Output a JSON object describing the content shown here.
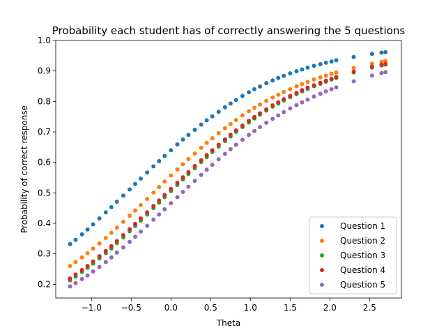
{
  "chart_data": {
    "type": "scatter",
    "title": "Probability each student has of correctly answering the 5 questions",
    "xlabel": "Theta",
    "ylabel": "Probability of correct response",
    "xlim": [
      -1.45,
      2.9
    ],
    "ylim": [
      0.155,
      1.0
    ],
    "xticks": [
      -1.0,
      -0.5,
      0.0,
      0.5,
      1.0,
      1.5,
      2.0,
      2.5
    ],
    "xtick_labels": [
      "−1.0",
      "−0.5",
      "0.0",
      "0.5",
      "1.0",
      "1.5",
      "2.0",
      "2.5"
    ],
    "yticks": [
      0.2,
      0.3,
      0.4,
      0.5,
      0.6,
      0.7,
      0.8,
      0.9,
      1.0
    ],
    "ytick_labels": [
      "0.2",
      "0.3",
      "0.4",
      "0.5",
      "0.6",
      "0.7",
      "0.8",
      "0.9",
      "1.0"
    ],
    "grid": false,
    "legend_position": "lower-right",
    "x": [
      -1.27,
      -1.2,
      -1.12,
      -1.05,
      -0.98,
      -0.9,
      -0.82,
      -0.75,
      -0.68,
      -0.6,
      -0.52,
      -0.45,
      -0.38,
      -0.3,
      -0.22,
      -0.15,
      -0.08,
      0.0,
      0.08,
      0.15,
      0.22,
      0.3,
      0.38,
      0.45,
      0.52,
      0.6,
      0.68,
      0.75,
      0.82,
      0.9,
      0.98,
      1.05,
      1.12,
      1.2,
      1.28,
      1.35,
      1.42,
      1.5,
      1.58,
      1.65,
      1.72,
      1.8,
      1.88,
      1.95,
      2.02,
      2.08,
      2.3,
      2.53,
      2.65,
      2.7
    ],
    "series": [
      {
        "name": "Question 1",
        "color": "#1f77b4",
        "values": [
          0.332,
          0.346,
          0.364,
          0.38,
          0.397,
          0.416,
          0.436,
          0.453,
          0.471,
          0.491,
          0.511,
          0.529,
          0.547,
          0.567,
          0.587,
          0.604,
          0.621,
          0.64,
          0.659,
          0.675,
          0.69,
          0.707,
          0.724,
          0.738,
          0.751,
          0.766,
          0.781,
          0.793,
          0.805,
          0.818,
          0.83,
          0.84,
          0.849,
          0.86,
          0.869,
          0.877,
          0.884,
          0.892,
          0.899,
          0.905,
          0.911,
          0.917,
          0.922,
          0.927,
          0.931,
          0.935,
          0.946,
          0.956,
          0.96,
          0.962
        ]
      },
      {
        "name": "Question 2",
        "color": "#ff7f0e",
        "values": [
          0.26,
          0.273,
          0.288,
          0.302,
          0.317,
          0.334,
          0.352,
          0.369,
          0.386,
          0.405,
          0.425,
          0.442,
          0.46,
          0.48,
          0.501,
          0.519,
          0.537,
          0.557,
          0.577,
          0.594,
          0.611,
          0.629,
          0.648,
          0.664,
          0.679,
          0.696,
          0.712,
          0.726,
          0.739,
          0.754,
          0.768,
          0.779,
          0.79,
          0.802,
          0.813,
          0.822,
          0.831,
          0.84,
          0.85,
          0.857,
          0.864,
          0.872,
          0.879,
          0.885,
          0.891,
          0.895,
          0.91,
          0.924,
          0.93,
          0.933
        ]
      },
      {
        "name": "Question 3",
        "color": "#2ca02c",
        "values": [
          0.213,
          0.225,
          0.24,
          0.254,
          0.268,
          0.285,
          0.302,
          0.318,
          0.335,
          0.354,
          0.374,
          0.391,
          0.409,
          0.429,
          0.45,
          0.468,
          0.486,
          0.506,
          0.526,
          0.544,
          0.562,
          0.581,
          0.601,
          0.617,
          0.634,
          0.652,
          0.67,
          0.685,
          0.7,
          0.716,
          0.731,
          0.744,
          0.757,
          0.77,
          0.783,
          0.793,
          0.803,
          0.814,
          0.824,
          0.833,
          0.841,
          0.85,
          0.858,
          0.865,
          0.872,
          0.877,
          0.895,
          0.911,
          0.918,
          0.921
        ]
      },
      {
        "name": "Question 4",
        "color": "#d62728",
        "values": [
          0.219,
          0.232,
          0.247,
          0.26,
          0.275,
          0.292,
          0.309,
          0.325,
          0.342,
          0.361,
          0.381,
          0.398,
          0.416,
          0.436,
          0.457,
          0.475,
          0.493,
          0.513,
          0.533,
          0.551,
          0.568,
          0.588,
          0.607,
          0.624,
          0.64,
          0.658,
          0.675,
          0.691,
          0.705,
          0.721,
          0.736,
          0.749,
          0.761,
          0.774,
          0.787,
          0.797,
          0.807,
          0.818,
          0.828,
          0.837,
          0.845,
          0.853,
          0.861,
          0.868,
          0.874,
          0.88,
          0.898,
          0.914,
          0.92,
          0.923
        ]
      },
      {
        "name": "Question 5",
        "color": "#9467bd",
        "values": [
          0.193,
          0.204,
          0.217,
          0.229,
          0.242,
          0.257,
          0.273,
          0.288,
          0.304,
          0.321,
          0.339,
          0.356,
          0.373,
          0.392,
          0.412,
          0.429,
          0.446,
          0.466,
          0.486,
          0.503,
          0.52,
          0.539,
          0.559,
          0.576,
          0.592,
          0.61,
          0.628,
          0.643,
          0.658,
          0.674,
          0.69,
          0.703,
          0.716,
          0.73,
          0.743,
          0.754,
          0.765,
          0.777,
          0.788,
          0.797,
          0.806,
          0.816,
          0.825,
          0.833,
          0.84,
          0.846,
          0.866,
          0.885,
          0.893,
          0.896
        ]
      }
    ]
  }
}
